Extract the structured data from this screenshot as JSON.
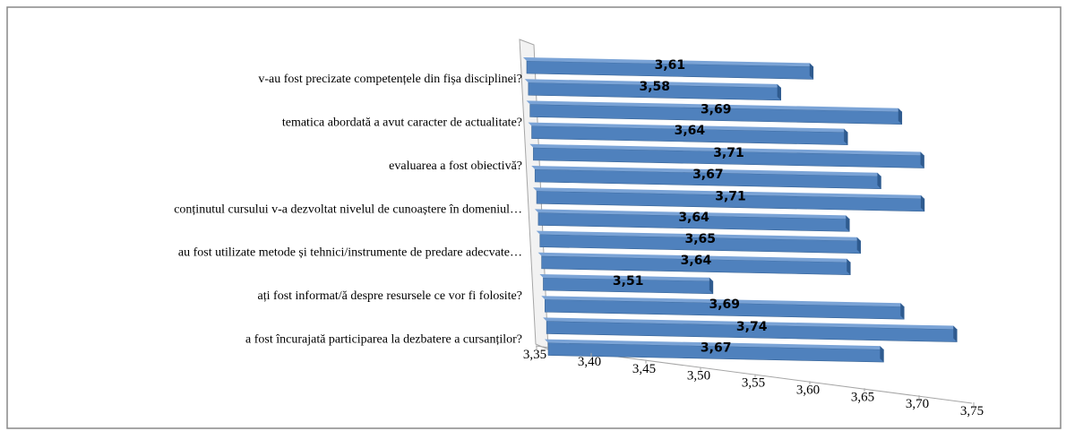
{
  "chart_data": {
    "type": "bar3d",
    "categories": [
      "v-au fost precizate competențele din fișa disciplinei?",
      "tematica abordată a avut caracter de actualitate?",
      "evaluarea a fost obiectivă?",
      "conținutul cursului v-a dezvoltat nivelul de cunoaștere în domeniul…",
      "au fost utilizate metode și tehnici/instrumente de predare adecvate…",
      "ați fost informat/ă despre resursele ce vor fi folosite?",
      "a fost încurajată participarea la dezbatere a cursanților?"
    ],
    "series": [
      {
        "color": "#4f81bd",
        "values": [
          3.61,
          3.69,
          3.71,
          3.71,
          3.65,
          3.51,
          3.74
        ],
        "value_labels": [
          "3,61",
          "3,69",
          "3,71",
          "3,71",
          "3,65",
          "3,51",
          "3,74"
        ]
      },
      {
        "color": "#4f81bd",
        "values": [
          3.58,
          3.64,
          3.67,
          3.64,
          3.64,
          3.69,
          3.67
        ],
        "value_labels": [
          "3,58",
          "3,64",
          "3,67",
          "3,64",
          "3,64",
          "3,69",
          "3,67"
        ]
      }
    ],
    "xlim": [
      3.35,
      3.75
    ],
    "xticks": [
      {
        "value": 3.35,
        "label": "3,35"
      },
      {
        "value": 3.4,
        "label": "3,40"
      },
      {
        "value": 3.45,
        "label": "3,45"
      },
      {
        "value": 3.5,
        "label": "3,50"
      },
      {
        "value": 3.55,
        "label": "3,55"
      },
      {
        "value": 3.6,
        "label": "3,60"
      },
      {
        "value": 3.65,
        "label": "3,65"
      },
      {
        "value": 3.7,
        "label": "3,70"
      },
      {
        "value": 3.75,
        "label": "3,75"
      }
    ]
  }
}
